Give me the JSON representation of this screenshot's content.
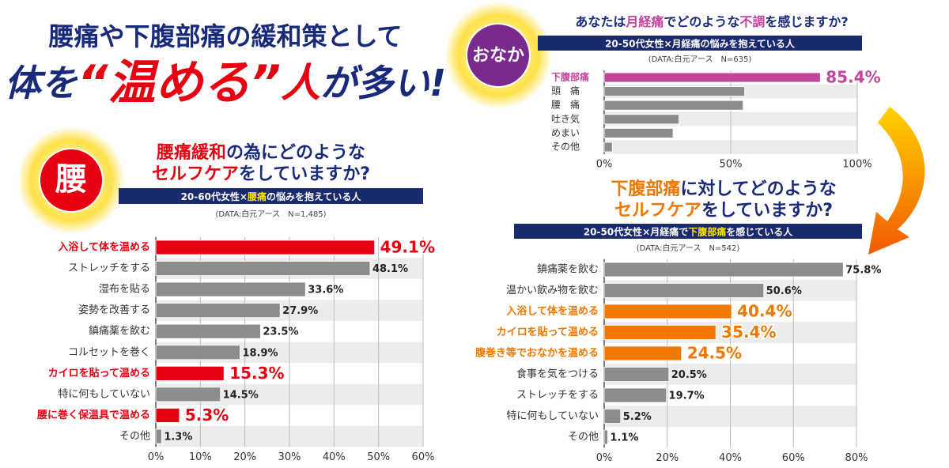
{
  "header": {
    "line1": "腰痛や下腹部痛の緩和策として",
    "line2": [
      {
        "text": "体を",
        "color": "#1a2a7a",
        "size": 46
      },
      {
        "text": "“温める”",
        "color": "#e60012",
        "size": 60
      },
      {
        "text": "人",
        "color": "#e60012",
        "size": 50
      },
      {
        "text": "が多い!",
        "color": "#1a2a7a",
        "size": 46
      }
    ]
  },
  "chart_data": [
    {
      "type": "hbar",
      "badge": "腰",
      "badge_color": "#e60012",
      "title_lines": [
        [
          {
            "text": "腰痛緩和",
            "color": "#e60012"
          },
          {
            "text": "の為にどのような",
            "color": "#1a2a7a"
          }
        ],
        [
          {
            "text": "セルフケア",
            "color": "#e60012"
          },
          {
            "text": "をしていますか?",
            "color": "#1a2a7a"
          }
        ]
      ],
      "subtitle": [
        {
          "text": "20-60代女性×",
          "color": "#ffffff"
        },
        {
          "text": "腰痛",
          "color": "#ffe600"
        },
        {
          "text": "の悩みを抱えている人",
          "color": "#ffffff"
        }
      ],
      "source": "(DATA:白元アース　N=1,485)",
      "categories": [
        "入浴して体を温める",
        "ストレッチをする",
        "湿布を貼る",
        "姿勢を改善する",
        "鎮痛薬を飲む",
        "コルセットを巻く",
        "カイロを貼って温める",
        "特に何もしていない",
        "腰に巻く保温具で温める",
        "その他"
      ],
      "values": [
        49.1,
        48.1,
        33.6,
        27.9,
        23.5,
        18.9,
        15.3,
        14.5,
        5.3,
        1.3
      ],
      "value_labels": [
        "49.1%",
        "48.1%",
        "33.6%",
        "27.9%",
        "23.5%",
        "18.9%",
        "15.3%",
        "14.5%",
        "5.3%",
        "1.3%"
      ],
      "color": "#8c8c8c",
      "colors": [
        "#e60012",
        "#8c8c8c",
        "#8c8c8c",
        "#8c8c8c",
        "#8c8c8c",
        "#8c8c8c",
        "#e60012",
        "#8c8c8c",
        "#e60012",
        "#8c8c8c"
      ],
      "xlim": [
        0,
        60
      ],
      "xticks": [
        {
          "value": 0,
          "label": "0%"
        },
        {
          "value": 10,
          "label": "10%"
        },
        {
          "value": 20,
          "label": "20%"
        },
        {
          "value": 30,
          "label": "30%"
        },
        {
          "value": 40,
          "label": "40%"
        },
        {
          "value": 50,
          "label": "50%"
        },
        {
          "value": 60,
          "label": "60%"
        }
      ]
    },
    {
      "type": "hbar",
      "badge": "おなか",
      "badge_color": "#7a2a8c",
      "title_lines": [
        [
          {
            "text": "あなたは",
            "color": "#1a2a7a"
          },
          {
            "text": "月経痛",
            "color": "#c2459c"
          },
          {
            "text": "でどのような",
            "color": "#1a2a7a"
          },
          {
            "text": "不調",
            "color": "#c2459c"
          },
          {
            "text": "を感じますか?",
            "color": "#1a2a7a"
          }
        ]
      ],
      "subtitle": [
        {
          "text": "20-50代女性×月経痛の悩みを抱えている人",
          "color": "#ffffff"
        }
      ],
      "source": "(DATA:白元アース　N=635)",
      "categories": [
        "下腹部痛",
        "頭　痛",
        "腰　痛",
        "吐き気",
        "めまい",
        "その他"
      ],
      "values": [
        85.4,
        55.5,
        54.9,
        29.5,
        27.2,
        3.2
      ],
      "value_labels": [
        "85.4%",
        null,
        null,
        null,
        null,
        null
      ],
      "color": "#8c8c8c",
      "colors": [
        "#c2459c",
        "#8c8c8c",
        "#8c8c8c",
        "#8c8c8c",
        "#8c8c8c",
        "#8c8c8c"
      ],
      "xlim": [
        0,
        100
      ],
      "xticks": [
        {
          "value": 0,
          "label": "0%"
        },
        {
          "value": 50,
          "label": "50%"
        },
        {
          "value": 100,
          "label": "100%"
        }
      ]
    },
    {
      "type": "hbar",
      "title_lines": [
        [
          {
            "text": "下腹部痛",
            "color": "#f07800"
          },
          {
            "text": "に対してどのような",
            "color": "#1a2a7a"
          }
        ],
        [
          {
            "text": "セルフケア",
            "color": "#f07800"
          },
          {
            "text": "をしていますか?",
            "color": "#1a2a7a"
          }
        ]
      ],
      "subtitle": [
        {
          "text": "20-50代女性×月経痛で",
          "color": "#ffffff"
        },
        {
          "text": "下腹部痛",
          "color": "#ffe600"
        },
        {
          "text": "を感じている人",
          "color": "#ffffff"
        }
      ],
      "source": "(DATA:白元アース　N=542)",
      "categories": [
        "鎮痛薬を飲む",
        "温かい飲み物を飲む",
        "入浴して体を温める",
        "カイロを貼って温める",
        "腹巻き等でおなかを温める",
        "食事を気をつける",
        "ストレッチをする",
        "特に何もしていない",
        "その他"
      ],
      "values": [
        75.8,
        50.6,
        40.4,
        35.4,
        24.5,
        20.5,
        19.7,
        5.2,
        1.1
      ],
      "value_labels": [
        "75.8%",
        "50.6%",
        "40.4%",
        "35.4%",
        "24.5%",
        "20.5%",
        "19.7%",
        "5.2%",
        "1.1%"
      ],
      "color": "#8c8c8c",
      "colors": [
        "#8c8c8c",
        "#8c8c8c",
        "#f07800",
        "#f07800",
        "#f07800",
        "#8c8c8c",
        "#8c8c8c",
        "#8c8c8c",
        "#8c8c8c"
      ],
      "xlim": [
        0,
        80
      ],
      "xticks": [
        {
          "value": 0,
          "label": "0%"
        },
        {
          "value": 20,
          "label": "20%"
        },
        {
          "value": 40,
          "label": "40%"
        },
        {
          "value": 60,
          "label": "60%"
        },
        {
          "value": 80,
          "label": "80%"
        }
      ]
    }
  ]
}
